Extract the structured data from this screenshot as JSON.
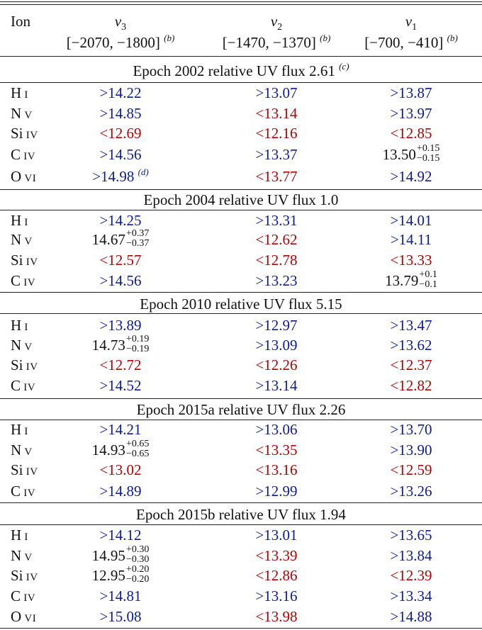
{
  "header": {
    "ion_label": "Ion",
    "columns": [
      {
        "sym": "v",
        "sub": "3",
        "range": "[−2070, −1800]",
        "note": "(b)"
      },
      {
        "sym": "v",
        "sub": "2",
        "range": "[−1470, −1370]",
        "note": "(b)"
      },
      {
        "sym": "v",
        "sub": "1",
        "range": "[−700, −410]",
        "note": "(b)"
      }
    ]
  },
  "epochs": [
    {
      "title": "Epoch 2002 relative UV flux 2.61",
      "note": "(c)"
    },
    {
      "title": "Epoch 2004 relative UV flux 1.0"
    },
    {
      "title": "Epoch 2010 relative UV flux 5.15"
    },
    {
      "title": "Epoch 2015a relative UV flux 2.26"
    },
    {
      "title": "Epoch 2015b relative UV flux 1.94"
    }
  ],
  "rows": {
    "e0r0": {
      "el": "H",
      "ion": "I",
      "v3": ">14.22",
      "v2": ">13.07",
      "v1": ">13.87"
    },
    "e0r1": {
      "el": "N",
      "ion": "V",
      "v3": ">14.85",
      "v2": "<13.14",
      "v1": ">13.97"
    },
    "e0r2": {
      "el": "Si",
      "ion": "IV",
      "v3": "<12.69",
      "v2": "<12.16",
      "v1": "<12.85"
    },
    "e0r3": {
      "el": "C",
      "ion": "IV",
      "v3": ">14.56",
      "v2": ">13.37",
      "v1_base": "13.50",
      "v1_up": "+0.15",
      "v1_dn": "−0.15"
    },
    "e0r4": {
      "el": "O",
      "ion": "VI",
      "v3": ">14.98",
      "v3_note": "(d)",
      "v2": "<13.77",
      "v1": ">14.92"
    },
    "e1r0": {
      "el": "H",
      "ion": "I",
      "v3": ">14.25",
      "v2": ">13.31",
      "v1": ">14.01"
    },
    "e1r1": {
      "el": "N",
      "ion": "V",
      "v3_base": "14.67",
      "v3_up": "+0.37",
      "v3_dn": "−0.37",
      "v2": "<12.62",
      "v1": ">14.11"
    },
    "e1r2": {
      "el": "Si",
      "ion": "IV",
      "v3": "<12.57",
      "v2": "<12.78",
      "v1": "<13.33"
    },
    "e1r3": {
      "el": "C",
      "ion": "IV",
      "v3": ">14.56",
      "v2": ">13.23",
      "v1_base": "13.79",
      "v1_up": "+0.1",
      "v1_dn": "−0.1"
    },
    "e2r0": {
      "el": "H",
      "ion": "I",
      "v3": ">13.89",
      "v2": ">12.97",
      "v1": ">13.47"
    },
    "e2r1": {
      "el": "N",
      "ion": "V",
      "v3_base": "14.73",
      "v3_up": "+0.19",
      "v3_dn": "−0.19",
      "v2": ">13.09",
      "v1": ">13.62"
    },
    "e2r2": {
      "el": "Si",
      "ion": "IV",
      "v3": "<12.72",
      "v2": "<12.26",
      "v1": "<12.37"
    },
    "e2r3": {
      "el": "C",
      "ion": "IV",
      "v3": ">14.52",
      "v2": ">13.14",
      "v1": "<12.82"
    },
    "e3r0": {
      "el": "H",
      "ion": "I",
      "v3": ">14.21",
      "v2": ">13.06",
      "v1": ">13.70"
    },
    "e3r1": {
      "el": "N",
      "ion": "V",
      "v3_base": "14.93",
      "v3_up": "+0.65",
      "v3_dn": "−0.65",
      "v2": "<13.35",
      "v1": ">13.90"
    },
    "e3r2": {
      "el": "Si",
      "ion": "IV",
      "v3": "<13.02",
      "v2": "<13.16",
      "v1": "<12.59"
    },
    "e3r3": {
      "el": "C",
      "ion": "IV",
      "v3": ">14.89",
      "v2": ">12.99",
      "v1": ">13.26"
    },
    "e4r0": {
      "el": "H",
      "ion": "I",
      "v3": ">14.12",
      "v2": ">13.01",
      "v1": ">13.65"
    },
    "e4r1": {
      "el": "N",
      "ion": "V",
      "v3_base": "14.95",
      "v3_up": "+0.30",
      "v3_dn": "−0.30",
      "v2": "<13.39",
      "v1": ">13.84"
    },
    "e4r2": {
      "el": "Si",
      "ion": "IV",
      "v3_base": "12.95",
      "v3_up": "+0.20",
      "v3_dn": "−0.20",
      "v2": "<12.86",
      "v1": "<12.39"
    },
    "e4r3": {
      "el": "C",
      "ion": "IV",
      "v3": ">14.81",
      "v2": ">13.16",
      "v1": ">13.34"
    },
    "e4r4": {
      "el": "O",
      "ion": "VI",
      "v3": ">15.08",
      "v2": "<13.98",
      "v1": ">14.88"
    }
  },
  "colors": {
    "lower_limit": "#0a1a9c",
    "upper_limit": "#b30000",
    "measurement": "#111111"
  }
}
